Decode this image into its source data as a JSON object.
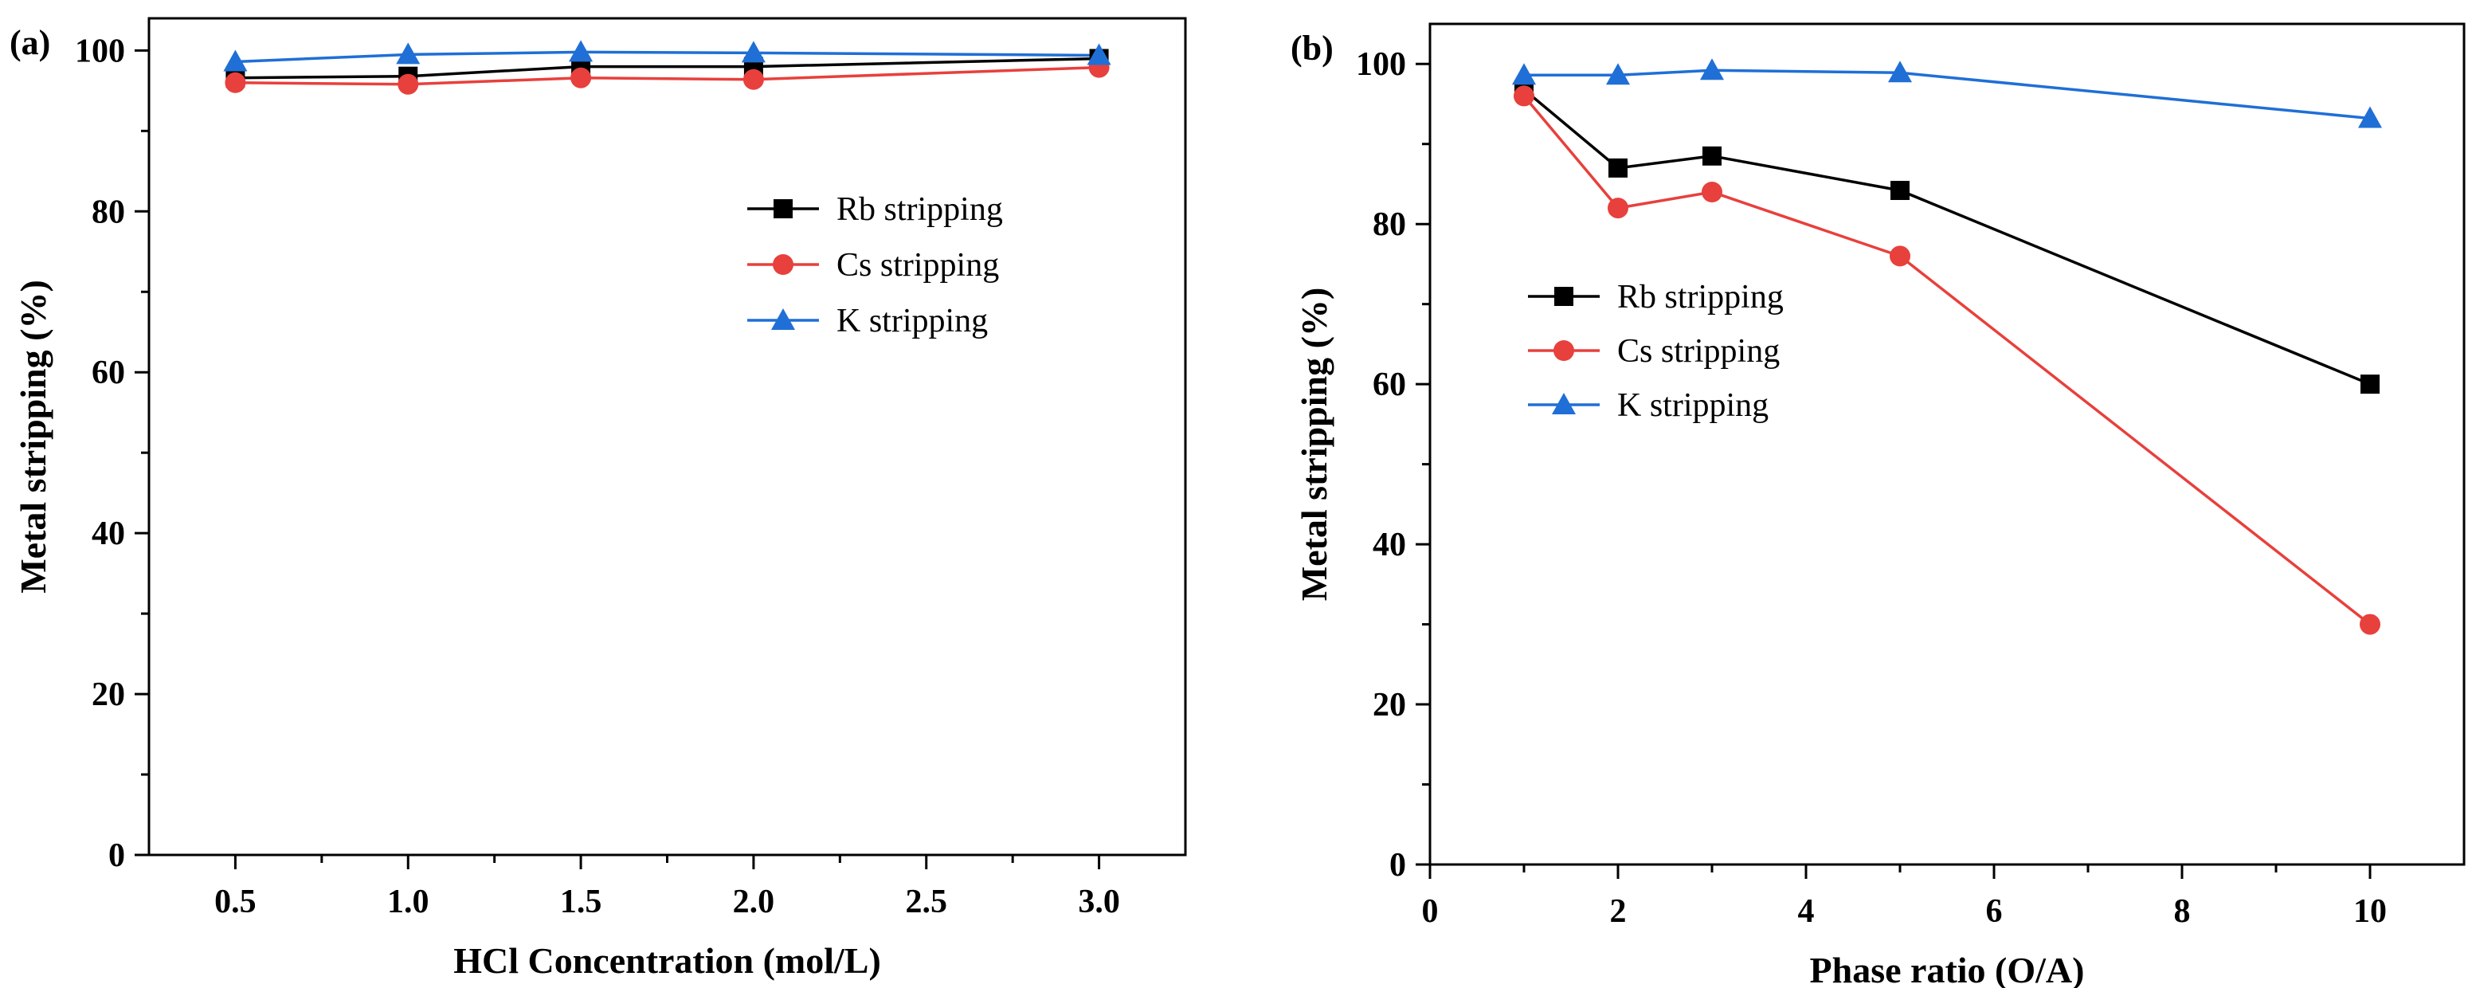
{
  "chart_data": [
    {
      "panel": "(a)",
      "type": "line",
      "xlabel": "HCl Concentration (mol/L)",
      "ylabel": "Metal stripping (%)",
      "xlim": [
        0.25,
        3.25
      ],
      "ylim": [
        0,
        104
      ],
      "xticks": [
        0.5,
        1.0,
        1.5,
        2.0,
        2.5,
        3.0
      ],
      "xtick_labels": [
        "0.5",
        "1.0",
        "1.5",
        "2.0",
        "2.5",
        "3.0"
      ],
      "yticks": [
        0,
        20,
        40,
        60,
        80,
        100
      ],
      "ytick_labels": [
        "0",
        "20",
        "40",
        "60",
        "80",
        "100"
      ],
      "legend_position": "center-right",
      "grid": false,
      "x": [
        0.5,
        1.0,
        1.5,
        2.0,
        3.0
      ],
      "series": [
        {
          "name": "Rb stripping",
          "color": "#000000",
          "marker": "square",
          "values": [
            96.6,
            96.8,
            98.0,
            98.0,
            99.0
          ]
        },
        {
          "name": "Cs stripping",
          "color": "#e8403c",
          "marker": "circle",
          "values": [
            96.0,
            95.8,
            96.6,
            96.4,
            97.9
          ]
        },
        {
          "name": "K stripping",
          "color": "#1f6fd6",
          "marker": "triangle",
          "values": [
            98.6,
            99.5,
            99.8,
            99.7,
            99.4
          ]
        }
      ]
    },
    {
      "panel": "(b)",
      "type": "line",
      "xlabel": "Phase ratio (O/A)",
      "ylabel": "Metal stripping (%)",
      "xlim": [
        0,
        11
      ],
      "ylim": [
        0,
        105
      ],
      "xticks": [
        0,
        2,
        4,
        6,
        8,
        10
      ],
      "xtick_labels": [
        "0",
        "2",
        "4",
        "6",
        "8",
        "10"
      ],
      "yticks": [
        0,
        20,
        40,
        60,
        80,
        100
      ],
      "ytick_labels": [
        "0",
        "20",
        "40",
        "60",
        "80",
        "100"
      ],
      "legend_position": "center-left",
      "grid": false,
      "x": [
        1,
        2,
        3,
        5,
        10
      ],
      "series": [
        {
          "name": "Rb stripping",
          "color": "#000000",
          "marker": "square",
          "values": [
            96.8,
            87.0,
            88.5,
            84.2,
            60.0
          ]
        },
        {
          "name": "Cs stripping",
          "color": "#e8403c",
          "marker": "circle",
          "values": [
            96.0,
            82.0,
            84.0,
            76.0,
            30.0
          ]
        },
        {
          "name": "K stripping",
          "color": "#1f6fd6",
          "marker": "triangle",
          "values": [
            98.6,
            98.6,
            99.2,
            98.9,
            93.2
          ]
        }
      ]
    }
  ]
}
